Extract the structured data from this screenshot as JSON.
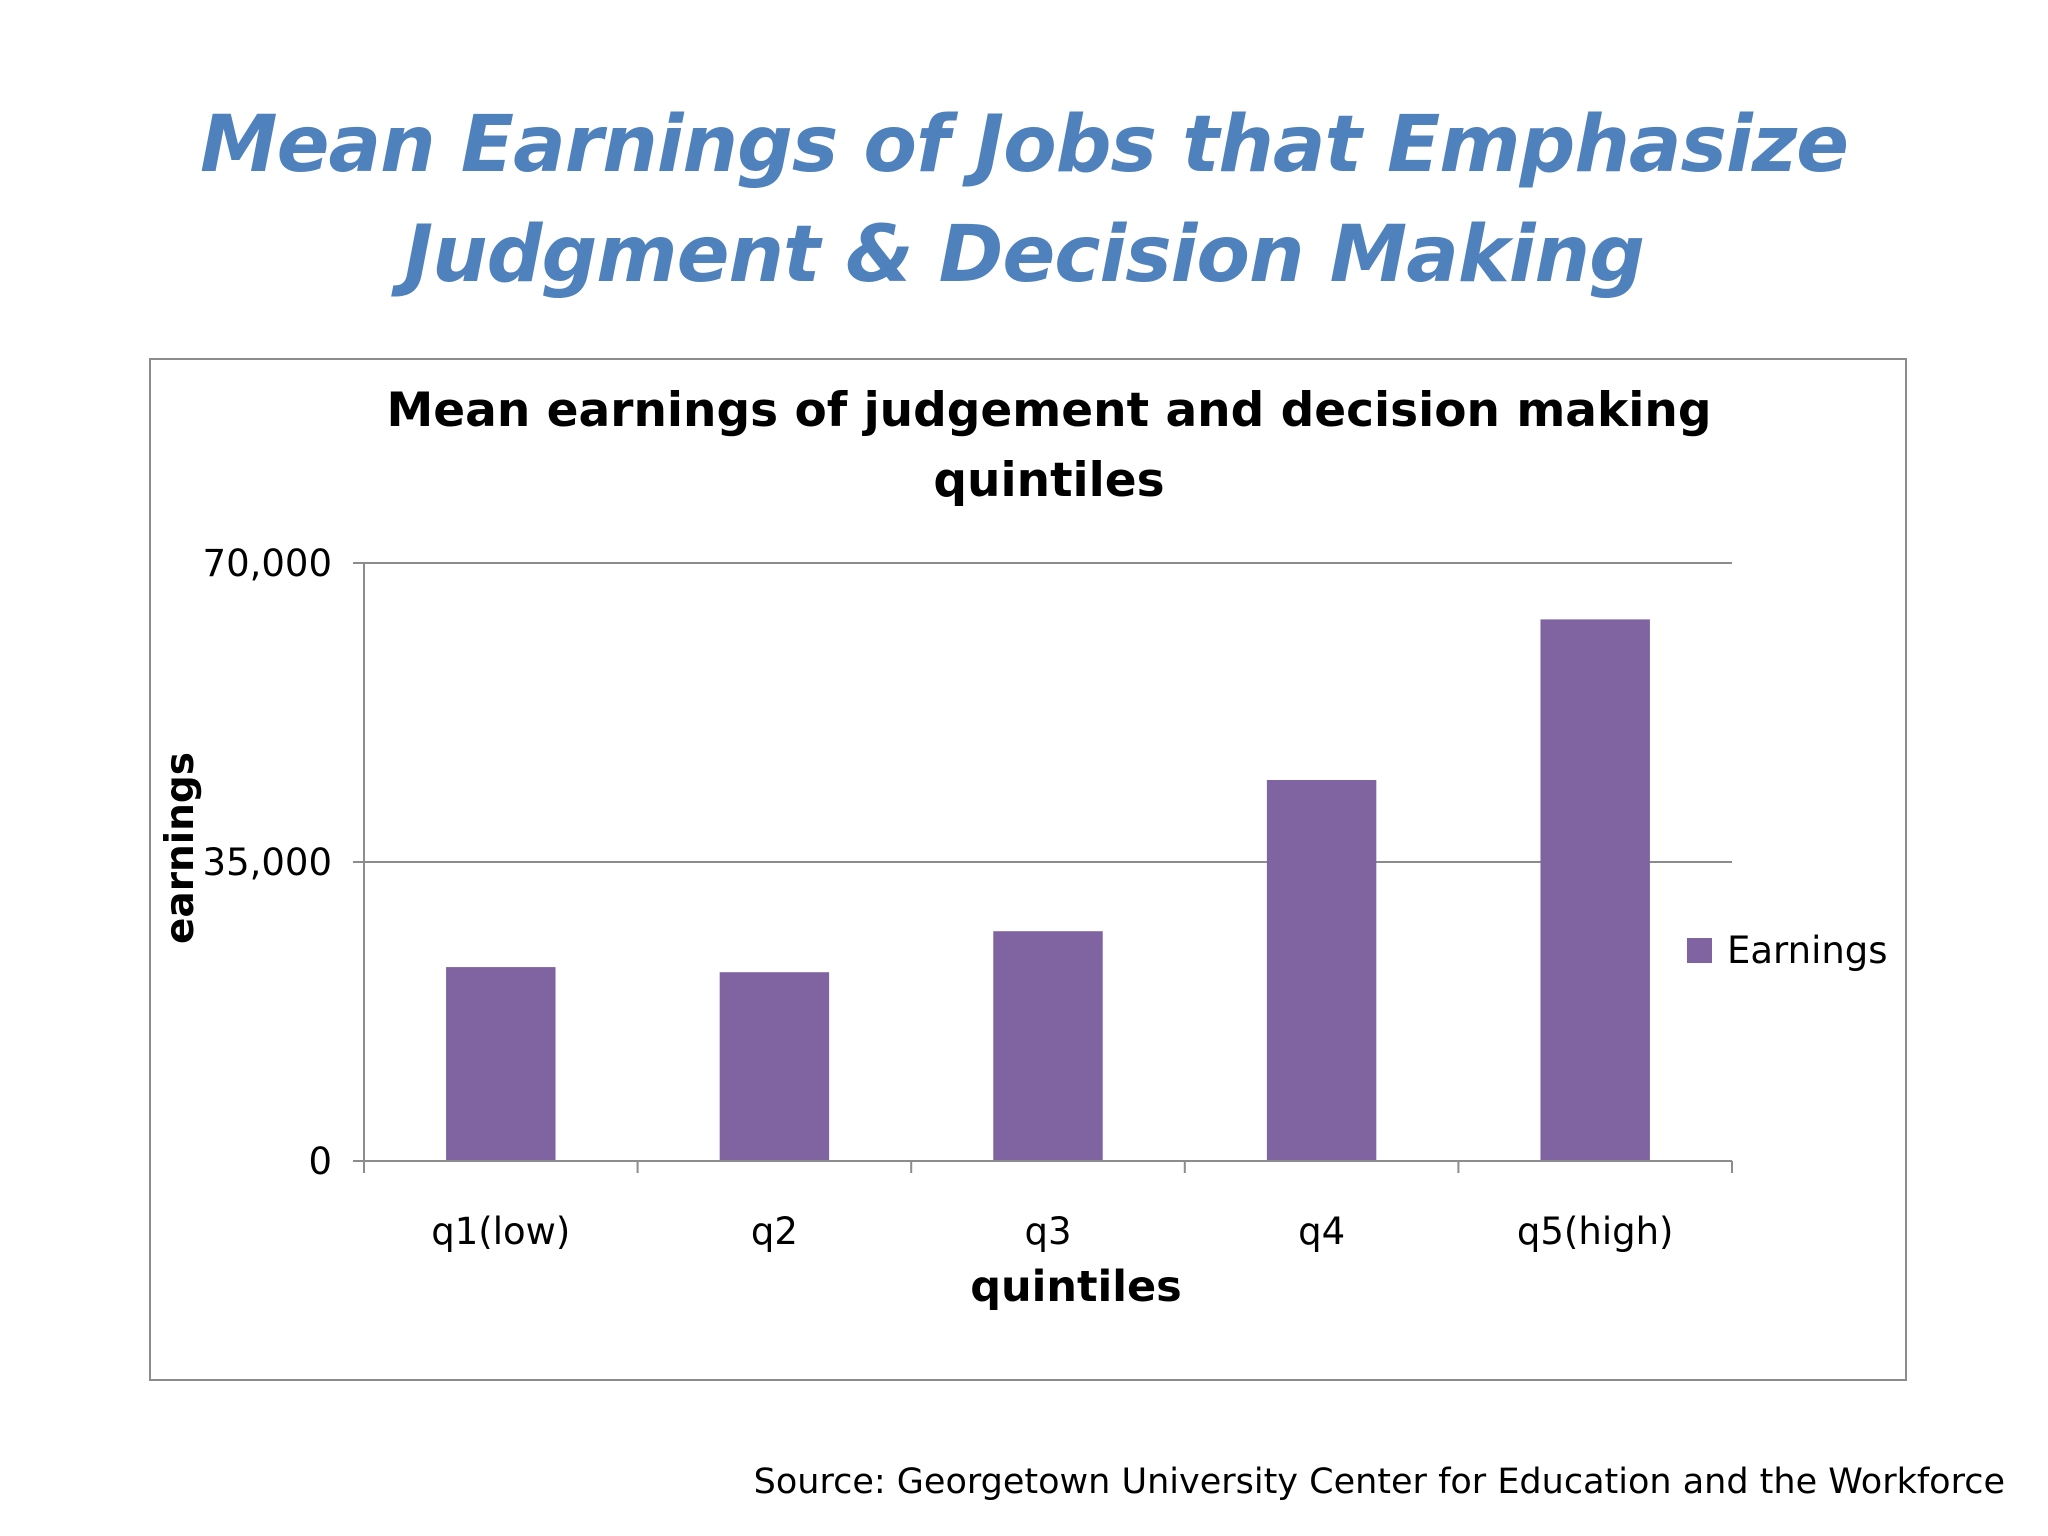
{
  "slide": {
    "title_line1": "Mean Earnings of Jobs that Emphasize",
    "title_line2": "Judgment & Decision Making",
    "source": "Source: Georgetown University Center for Education and the Workforce"
  },
  "colors": {
    "title": "#4f81bd",
    "bar": "#8064a2",
    "gridline": "#8c8c8c"
  },
  "chart_data": {
    "type": "bar",
    "title": "Mean earnings of judgement and decision making quintiles",
    "title_lines": [
      "Mean earnings of judgement and decision making",
      "quintiles"
    ],
    "xlabel": "quintiles",
    "ylabel": "earnings",
    "categories": [
      "q1(low)",
      "q2",
      "q3",
      "q4",
      "q5(high)"
    ],
    "series": [
      {
        "name": "Earnings",
        "values": [
          22700,
          22100,
          26900,
          44600,
          63400
        ]
      }
    ],
    "ylim": [
      0,
      70000
    ],
    "yticks": [
      0,
      35000,
      70000
    ],
    "ytick_labels": [
      "0",
      "35,000",
      "70,000"
    ],
    "grid": true,
    "legend": "right"
  }
}
